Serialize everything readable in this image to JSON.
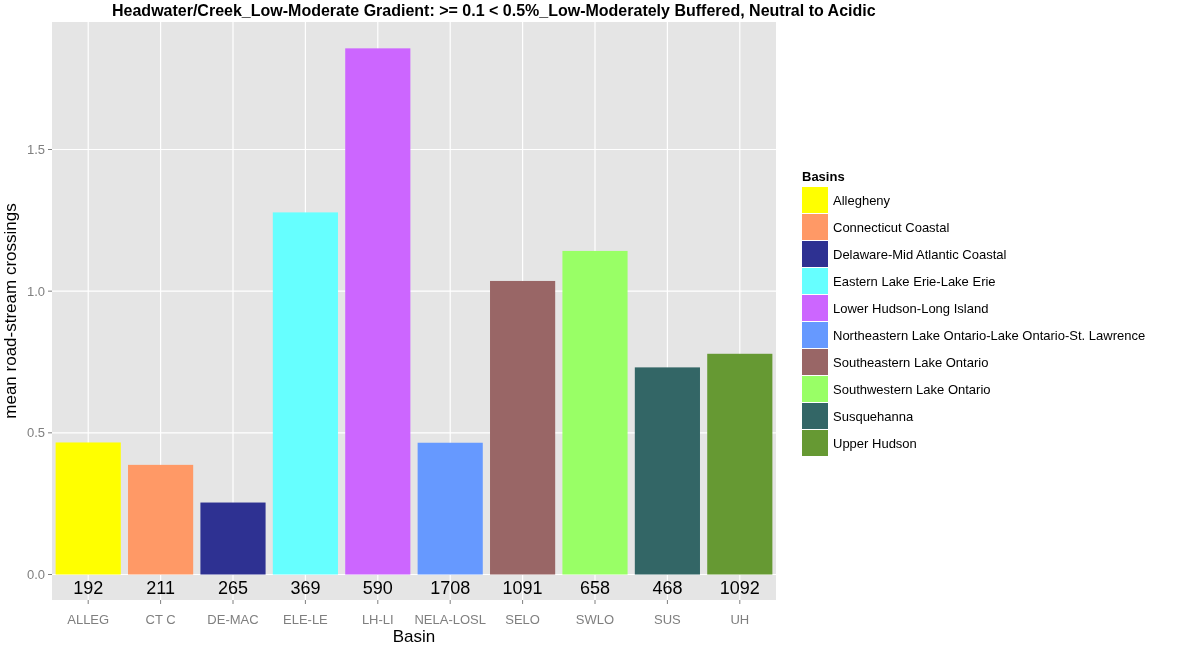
{
  "chart_data": {
    "type": "bar",
    "title": "Headwater/Creek_Low-Moderate Gradient: >= 0.1 < 0.5%_Low-Moderately Buffered, Neutral to Acidic",
    "xlabel": "Basin",
    "ylabel": "mean road-stream crossings",
    "legend_title": "Basins",
    "legend": "right",
    "grid": true,
    "categories": [
      "ALLEG",
      "CT C",
      "DE-MAC",
      "ELE-LE",
      "LH-LI",
      "NELA-LOSL",
      "SELO",
      "SWLO",
      "SUS",
      "UH"
    ],
    "ylim": [
      -0.09,
      1.95
    ],
    "yticks": [
      {
        "value": 0,
        "label": "0.0"
      },
      0.5,
      {
        "value": 1,
        "label": "1.0"
      },
      1.5
    ],
    "annotations": [
      {
        "text": "192",
        "x": "ALLEG",
        "y": 0
      },
      {
        "text": "211",
        "x": "CT C",
        "y": 0
      },
      {
        "text": "265",
        "x": "DE-MAC",
        "y": 0
      },
      {
        "text": "369",
        "x": "ELE-LE",
        "y": 0
      },
      {
        "text": "590",
        "x": "LH-LI",
        "y": 0
      },
      {
        "text": "1708",
        "x": "NELA-LOSL",
        "y": 0
      },
      {
        "text": "1091",
        "x": "SELO",
        "y": 0
      },
      {
        "text": "658",
        "x": "SWLO",
        "y": 0
      },
      {
        "text": "468",
        "x": "SUS",
        "y": 0
      },
      {
        "text": "1092",
        "x": "UH",
        "y": 0
      }
    ],
    "series": [
      {
        "name": "Allegheny",
        "color": "#ffff00",
        "values": [
          0.466,
          null,
          null,
          null,
          null,
          null,
          null,
          null,
          null,
          null
        ]
      },
      {
        "name": "Connecticut Coastal",
        "color": "#ff9966",
        "values": [
          null,
          0.387,
          null,
          null,
          null,
          null,
          null,
          null,
          null,
          null
        ]
      },
      {
        "name": "Delaware-Mid Atlantic Coastal",
        "color": "#2e3192",
        "values": [
          null,
          null,
          0.254,
          null,
          null,
          null,
          null,
          null,
          null,
          null
        ]
      },
      {
        "name": "Eastern Lake Erie-Lake Erie",
        "color": "#66ffff",
        "values": [
          null,
          null,
          null,
          1.278,
          null,
          null,
          null,
          null,
          null,
          null
        ]
      },
      {
        "name": "Lower Hudson-Long Island",
        "color": "#cc66ff",
        "values": [
          null,
          null,
          null,
          null,
          1.857,
          null,
          null,
          null,
          null,
          null
        ]
      },
      {
        "name": "Northeastern Lake Ontario-Lake Ontario-St. Lawrence",
        "color": "#6699ff",
        "values": [
          null,
          null,
          null,
          null,
          null,
          0.465,
          null,
          null,
          null,
          null
        ]
      },
      {
        "name": "Southeastern Lake Ontario",
        "color": "#996666",
        "values": [
          null,
          null,
          null,
          null,
          null,
          null,
          1.036,
          null,
          null,
          null
        ]
      },
      {
        "name": "Southwestern Lake Ontario",
        "color": "#99ff66",
        "values": [
          null,
          null,
          null,
          null,
          null,
          null,
          null,
          1.142,
          null,
          null
        ]
      },
      {
        "name": "Susquehanna",
        "color": "#336666",
        "values": [
          null,
          null,
          null,
          null,
          null,
          null,
          null,
          null,
          0.731,
          null
        ]
      },
      {
        "name": "Upper Hudson",
        "color": "#669933",
        "values": [
          null,
          null,
          null,
          null,
          null,
          null,
          null,
          null,
          null,
          0.779
        ]
      }
    ]
  }
}
